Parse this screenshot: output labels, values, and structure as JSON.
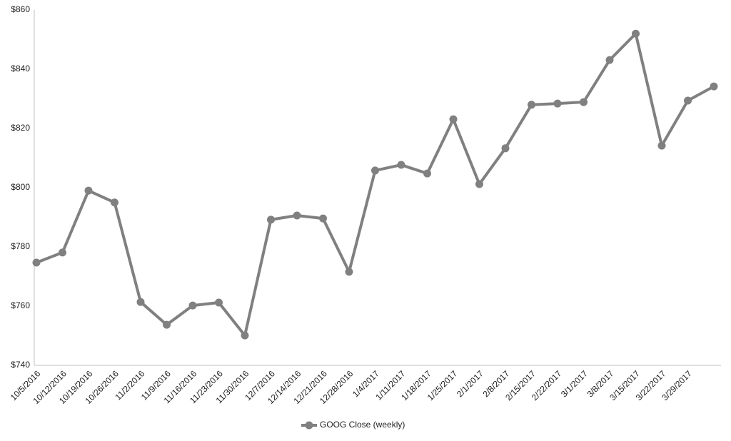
{
  "chart_data": {
    "type": "line",
    "categories": [
      "10/5/2016",
      "10/12/2016",
      "10/19/2016",
      "10/26/2016",
      "11/2/2016",
      "11/9/2016",
      "11/16/2016",
      "11/23/2016",
      "11/30/2016",
      "12/7/2016",
      "12/14/2016",
      "12/21/2016",
      "12/28/2016",
      "1/4/2017",
      "1/11/2017",
      "1/18/2017",
      "1/25/2017",
      "2/1/2017",
      "2/8/2017",
      "2/15/2017",
      "2/22/2017",
      "3/1/2017",
      "3/8/2017",
      "3/15/2017",
      "3/22/2017",
      "3/29/2017",
      null
    ],
    "series": [
      {
        "name": "GOOG Close (weekly)",
        "color": "#808080",
        "values": [
          774.7,
          778.1,
          799.0,
          795.0,
          761.4,
          753.7,
          760.2,
          761.2,
          750.1,
          789.2,
          790.6,
          789.6,
          771.6,
          805.8,
          807.7,
          804.8,
          823.1,
          801.2,
          813.3,
          828.0,
          828.4,
          828.9,
          843.1,
          852.0,
          814.2,
          829.4,
          834.2
        ]
      }
    ],
    "ylim": [
      740,
      860
    ],
    "yticks": [
      {
        "value": 740,
        "label": "$740"
      },
      {
        "value": 760,
        "label": "$760"
      },
      {
        "value": 780,
        "label": "$780"
      },
      {
        "value": 800,
        "label": "$800"
      },
      {
        "value": 820,
        "label": "$820"
      },
      {
        "value": 840,
        "label": "$840"
      },
      {
        "value": 860,
        "label": "$860"
      }
    ],
    "grid": false,
    "legend": "bottom"
  }
}
